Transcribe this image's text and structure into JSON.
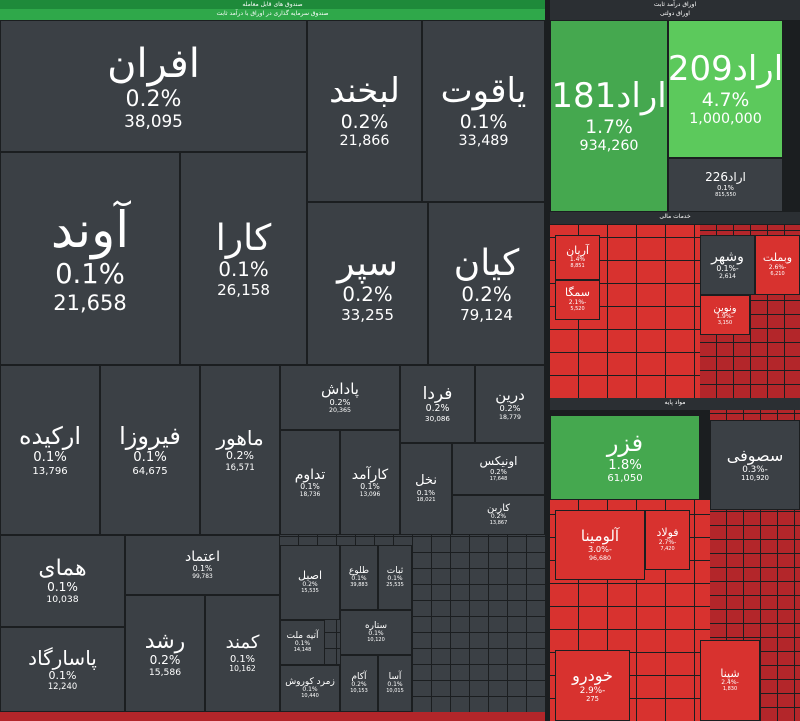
{
  "header": {
    "funds": "صندوق های قابل معامله",
    "fixed_income_funds": "صندوق سرمایه گذاری در اوراق با درآمد ثابت",
    "bonds": "اوراق درآمد ثابت",
    "gov_bonds": "اوراق دولتی",
    "financial": "خدمات مالی",
    "basic": "مواد پایه"
  },
  "tiles": [
    {
      "name": "افران",
      "change": "0.2%",
      "volume": "38,095"
    },
    {
      "name": "لبخند",
      "change": "0.2%",
      "volume": "21,866"
    },
    {
      "name": "یاقوت",
      "change": "0.1%",
      "volume": "33,489"
    },
    {
      "name": "آوند",
      "change": "0.1%",
      "volume": "21,658"
    },
    {
      "name": "کارا",
      "change": "0.1%",
      "volume": "26,158"
    },
    {
      "name": "سپر",
      "change": "0.2%",
      "volume": "33,255"
    },
    {
      "name": "کیان",
      "change": "0.2%",
      "volume": "79,124"
    },
    {
      "name": "ارکیده",
      "change": "0.1%",
      "volume": "13,796"
    },
    {
      "name": "فیروزا",
      "change": "0.1%",
      "volume": "64,675"
    },
    {
      "name": "ماهور",
      "change": "0.2%",
      "volume": "16,571"
    },
    {
      "name": "پاداش",
      "change": "0.2%",
      "volume": "20,365"
    },
    {
      "name": "فردا",
      "change": "0.2%",
      "volume": "30,086"
    },
    {
      "name": "درین",
      "change": "0.2%",
      "volume": "18,779"
    },
    {
      "name": "تداوم",
      "change": "0.1%",
      "volume": "18,736"
    },
    {
      "name": "کارآمد",
      "change": "0.1%",
      "volume": "13,096"
    },
    {
      "name": "نخل",
      "change": "0.1%",
      "volume": "18,021"
    },
    {
      "name": "اونیکس",
      "change": "0.2%",
      "volume": "17,648"
    },
    {
      "name": "کاربن",
      "change": "0.2%",
      "volume": "13,867"
    },
    {
      "name": "همای",
      "change": "0.1%",
      "volume": "10,038"
    },
    {
      "name": "اعتماد",
      "change": "0.1%",
      "volume": "99,783"
    },
    {
      "name": "پاسارگاد",
      "change": "0.1%",
      "volume": "12,240"
    },
    {
      "name": "رشد",
      "change": "0.2%",
      "volume": "15,586"
    },
    {
      "name": "کمند",
      "change": "0.1%",
      "volume": "10,162"
    },
    {
      "name": "اصیل",
      "change": "0.2%",
      "volume": "15,535"
    },
    {
      "name": "طلوع",
      "change": "0.1%",
      "volume": "39,883"
    },
    {
      "name": "ثبات",
      "change": "0.1%",
      "volume": "25,535"
    },
    {
      "name": "آتیه ملت",
      "change": "0.1%",
      "volume": "14,148"
    },
    {
      "name": "زمرد کوروش",
      "change": "0.1%",
      "volume": "10,440"
    },
    {
      "name": "آکام",
      "change": "0.2%",
      "volume": "10,153"
    },
    {
      "name": "آسا",
      "change": "0.1%",
      "volume": "10,015"
    },
    {
      "name": "ستاره",
      "change": "0.1%",
      "volume": "10,120"
    },
    {
      "name": "اراد181",
      "change": "1.7%",
      "volume": "934,260"
    },
    {
      "name": "اراد209",
      "change": "4.7%",
      "volume": "1,000,000"
    },
    {
      "name": "اراد226",
      "change": "0.1%",
      "volume": "815,550"
    },
    {
      "name": "آریان",
      "change": "1.4%",
      "volume": "8,851"
    },
    {
      "name": "سمگا",
      "change": "-2.1%",
      "volume": "5,520"
    },
    {
      "name": "وشهر",
      "change": "-0.1%",
      "volume": "2,614"
    },
    {
      "name": "وبملت",
      "change": "-2.6%",
      "volume": "6,210"
    },
    {
      "name": "ونوین",
      "change": "-1.9%",
      "volume": "3,150"
    },
    {
      "name": "فزر",
      "change": "1.8%",
      "volume": "61,050"
    },
    {
      "name": "سصوفی",
      "change": "-0.3%",
      "volume": "110,920"
    },
    {
      "name": "آلومینا",
      "change": "-3.0%",
      "volume": "96,680"
    },
    {
      "name": "فولاد",
      "change": "-2.7%",
      "volume": "7,420"
    },
    {
      "name": "خودرو",
      "change": "-2.9%",
      "volume": "275"
    },
    {
      "name": "شپنا",
      "change": "-2.4%",
      "volume": "1,830"
    }
  ]
}
